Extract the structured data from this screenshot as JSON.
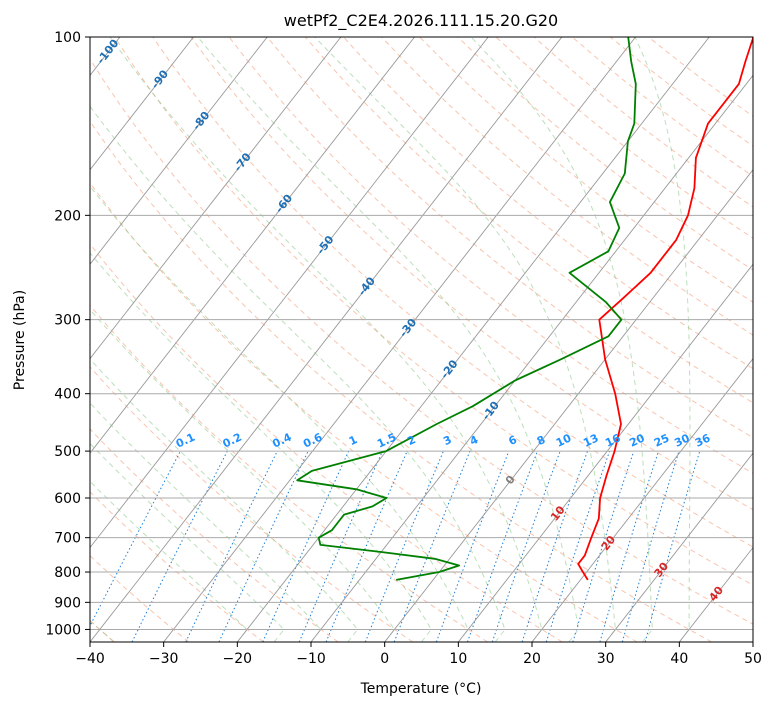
{
  "chart_data": {
    "type": "line",
    "title": "wetPf2_C2E4.2026.111.15.20.G20",
    "xlabel": "Temperature (°C)",
    "ylabel": "Pressure (hPa)",
    "xlim": [
      -40,
      50
    ],
    "ylim": [
      1050,
      100
    ],
    "y_scale": "log",
    "x_ticks": [
      -40,
      -30,
      -20,
      -10,
      0,
      10,
      20,
      30,
      40,
      50
    ],
    "y_ticks": [
      100,
      200,
      300,
      400,
      500,
      600,
      700,
      800,
      900,
      1000
    ],
    "grid": true,
    "series": [
      {
        "color": "#ff0000",
        "points": [
          [
            825,
            21
          ],
          [
            800,
            19.5
          ],
          [
            775,
            18
          ],
          [
            750,
            18
          ],
          [
            700,
            17
          ],
          [
            650,
            16
          ],
          [
            600,
            14
          ],
          [
            550,
            12.5
          ],
          [
            500,
            11
          ],
          [
            450,
            9
          ],
          [
            400,
            5
          ],
          [
            350,
            0
          ],
          [
            300,
            -5
          ],
          [
            275,
            -4
          ],
          [
            250,
            -3
          ],
          [
            220,
            -3
          ],
          [
            200,
            -4
          ],
          [
            180,
            -6
          ],
          [
            160,
            -9
          ],
          [
            140,
            -11
          ],
          [
            120,
            -11
          ],
          [
            110,
            -12.5
          ],
          [
            100,
            -14
          ]
        ]
      },
      {
        "color": "#008000",
        "points": [
          [
            825,
            -5
          ],
          [
            800,
            0
          ],
          [
            780,
            2
          ],
          [
            760,
            -2
          ],
          [
            740,
            -10
          ],
          [
            720,
            -19
          ],
          [
            700,
            -20
          ],
          [
            680,
            -19
          ],
          [
            660,
            -19
          ],
          [
            640,
            -19
          ],
          [
            620,
            -16
          ],
          [
            600,
            -15
          ],
          [
            580,
            -20
          ],
          [
            560,
            -29
          ],
          [
            540,
            -28
          ],
          [
            500,
            -20
          ],
          [
            450,
            -16
          ],
          [
            420,
            -13
          ],
          [
            380,
            -10
          ],
          [
            350,
            -6
          ],
          [
            320,
            -2
          ],
          [
            300,
            -2
          ],
          [
            280,
            -6
          ],
          [
            250,
            -14
          ],
          [
            230,
            -11
          ],
          [
            210,
            -12
          ],
          [
            190,
            -16
          ],
          [
            170,
            -17
          ],
          [
            150,
            -20
          ],
          [
            140,
            -21
          ],
          [
            120,
            -25
          ],
          [
            110,
            -28
          ],
          [
            100,
            -31
          ]
        ]
      }
    ],
    "isotherm_labels": [
      {
        "t": -100,
        "color": "#1f6fb5"
      },
      {
        "t": -90,
        "color": "#1f6fb5"
      },
      {
        "t": -80,
        "color": "#1f6fb5"
      },
      {
        "t": -70,
        "color": "#1f6fb5"
      },
      {
        "t": -60,
        "color": "#1f6fb5"
      },
      {
        "t": -50,
        "color": "#1f6fb5"
      },
      {
        "t": -40,
        "color": "#1f6fb5"
      },
      {
        "t": -30,
        "color": "#1f6fb5"
      },
      {
        "t": -20,
        "color": "#1f6fb5"
      },
      {
        "t": -10,
        "color": "#1f6fb5"
      },
      {
        "t": 0,
        "color": "#808080"
      },
      {
        "t": 10,
        "color": "#d62728"
      },
      {
        "t": 20,
        "color": "#d62728"
      },
      {
        "t": 30,
        "color": "#d62728"
      },
      {
        "t": 40,
        "color": "#d62728"
      }
    ],
    "mixing_ratio_labels": [
      "0.1",
      "0.2",
      "0.4",
      "0.6",
      "1",
      "1.5",
      "2",
      "3",
      "4",
      "6",
      "8",
      "10",
      "13",
      "16",
      "20",
      "25",
      "30",
      "36"
    ]
  }
}
